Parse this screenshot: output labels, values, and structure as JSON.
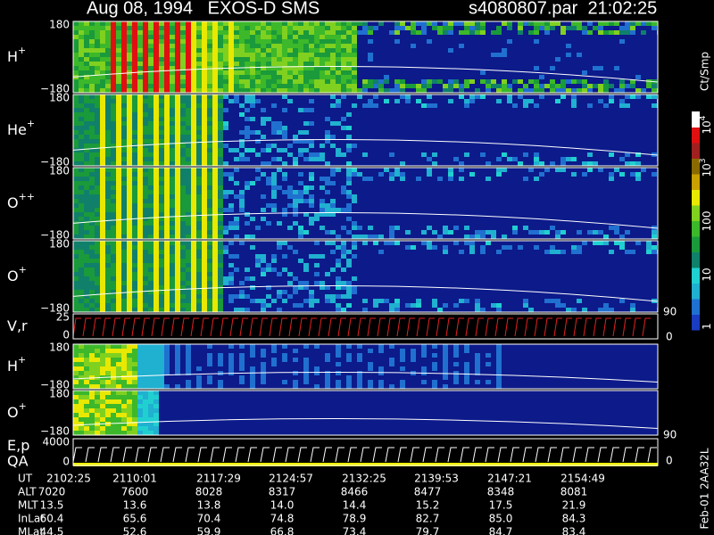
{
  "header": {
    "left": "Aug 08, 1994   EXOS-D SMS",
    "right": "s4080807.par  21:02:25"
  },
  "panels": [
    {
      "label": "H",
      "sup": "+",
      "top": "180",
      "bottom": "−180"
    },
    {
      "label": "He",
      "sup": "+",
      "top": "180",
      "bottom": "−180"
    },
    {
      "label": "O",
      "sup": "++",
      "top": "180",
      "bottom": "−180"
    },
    {
      "label": "O",
      "sup": "+",
      "top": "180",
      "bottom": "−180"
    },
    {
      "label": "V,r",
      "top": "25",
      "bottom": "0"
    },
    {
      "label": "H",
      "sup": "+",
      "top": "180",
      "bottom": "−180"
    },
    {
      "label": "O",
      "sup": "+",
      "top": "180",
      "bottom": "−180"
    },
    {
      "label": "E,p",
      "label2": "QA",
      "top": "4000",
      "bottom": "0"
    }
  ],
  "right_axes": [
    {
      "top": "90",
      "bottom": "0"
    },
    {
      "top": "90",
      "bottom": "0"
    }
  ],
  "colorbar": {
    "title": "Ct/Smp",
    "labels": [
      {
        "base": "10",
        "sup": "4"
      },
      {
        "base": "10",
        "sup": "3"
      },
      {
        "base": "100"
      },
      {
        "base": "10"
      },
      {
        "base": "1"
      }
    ]
  },
  "table": {
    "rows": [
      {
        "label": "UT",
        "values": [
          "2102:25",
          "2110:01",
          "2117:29",
          "2124:57",
          "2132:25",
          "2139:53",
          "2147:21",
          "2154:49"
        ]
      },
      {
        "label": "ALT",
        "values": [
          "7020",
          "7600",
          "8028",
          "8317",
          "8466",
          "8477",
          "8348",
          "8081"
        ]
      },
      {
        "label": "MLT",
        "values": [
          "13.5",
          "13.6",
          "13.8",
          "14.0",
          "14.4",
          "15.2",
          "17.5",
          "21.9"
        ]
      },
      {
        "label": "InLat",
        "values": [
          "60.4",
          "65.6",
          "70.4",
          "74.8",
          "78.9",
          "82.7",
          "85.0",
          "84.3"
        ]
      },
      {
        "label": "MLat",
        "values": [
          "44.5",
          "52.6",
          "59.9",
          "66.8",
          "73.4",
          "79.7",
          "84.7",
          "83.4"
        ]
      }
    ]
  },
  "footer": "Feb-01 2AA32L"
}
